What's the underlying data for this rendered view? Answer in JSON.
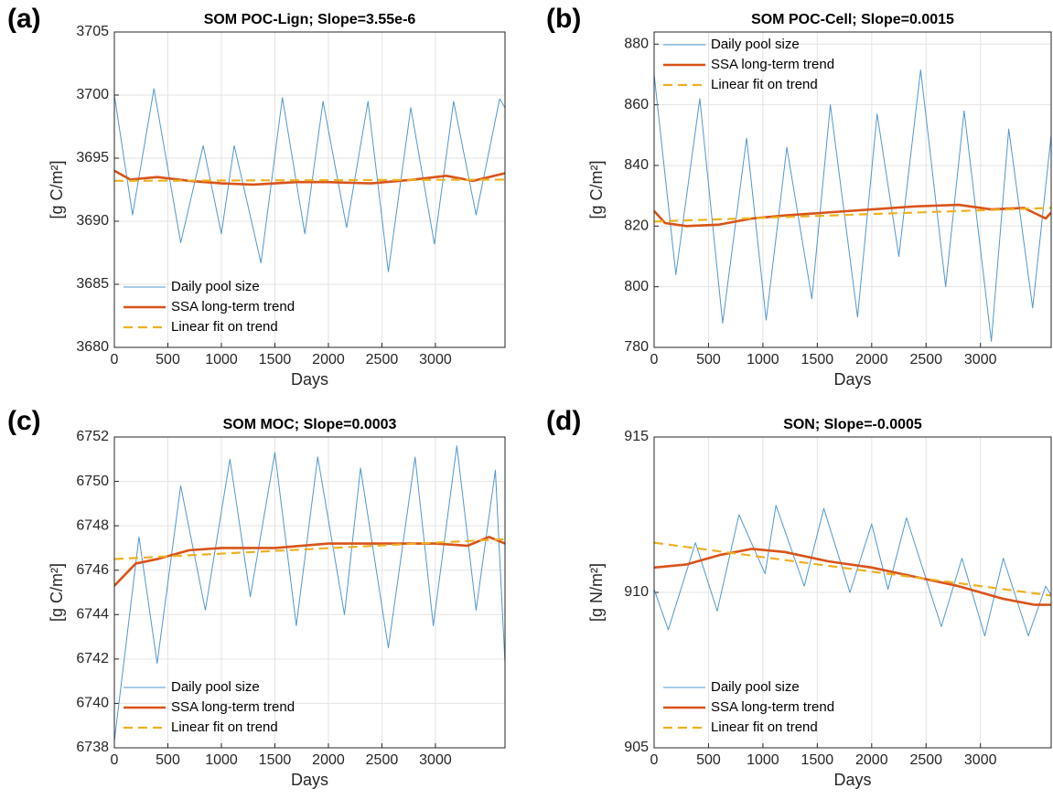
{
  "chart_data": [
    {
      "type": "line",
      "panel_label": "(a)",
      "title": "SOM POC-Lign; Slope=3.55e-6",
      "x_label": "Days",
      "y_label": "[g C/m²]",
      "xlim": [
        0,
        3650
      ],
      "xticks": [
        0,
        500,
        1000,
        1500,
        2000,
        2500,
        3000
      ],
      "ylim": [
        3680,
        3705
      ],
      "yticks": [
        3680,
        3685,
        3690,
        3695,
        3700,
        3705
      ],
      "grid": true,
      "legend": "lower left",
      "series": [
        {
          "name": "Daily pool size",
          "color": "#4f98d1",
          "style": "solid",
          "x": [
            0,
            170,
            370,
            620,
            830,
            1000,
            1120,
            1370,
            1570,
            1780,
            1950,
            2170,
            2370,
            2560,
            2770,
            2990,
            3170,
            3380,
            3600,
            3650
          ],
          "values": [
            3700,
            3690.5,
            3700.5,
            3688.3,
            3696,
            3689,
            3696,
            3686.7,
            3699.8,
            3689,
            3699.5,
            3689.5,
            3699.5,
            3686,
            3699,
            3688.2,
            3699.5,
            3690.5,
            3699.7,
            3699
          ]
        },
        {
          "name": "SSA long-term trend",
          "color": "#d95319",
          "style": "thick",
          "x": [
            0,
            150,
            400,
            700,
            1000,
            1300,
            1700,
            2000,
            2400,
            2800,
            3100,
            3350,
            3650
          ],
          "values": [
            3694,
            3693.3,
            3693.5,
            3693.2,
            3693,
            3692.9,
            3693.1,
            3693.1,
            3693,
            3693.3,
            3693.6,
            3693.2,
            3693.8
          ]
        },
        {
          "name": "Linear fit on trend",
          "color": "#edb120",
          "style": "dashed",
          "x": [
            0,
            3650
          ],
          "values": [
            3693.2,
            3693.3
          ]
        }
      ]
    },
    {
      "type": "line",
      "panel_label": "(b)",
      "title": "SOM POC-Cell; Slope=0.0015",
      "x_label": "Days",
      "y_label": "[g C/m²]",
      "xlim": [
        0,
        3650
      ],
      "xticks": [
        0,
        500,
        1000,
        1500,
        2000,
        2500,
        3000
      ],
      "ylim": [
        780,
        884
      ],
      "yticks": [
        780,
        800,
        820,
        840,
        860,
        880
      ],
      "grid": true,
      "legend": "upper left",
      "series": [
        {
          "name": "Daily pool size",
          "color": "#4f98d1",
          "style": "solid",
          "x": [
            0,
            200,
            420,
            630,
            850,
            1030,
            1220,
            1450,
            1620,
            1870,
            2050,
            2250,
            2450,
            2680,
            2850,
            3100,
            3260,
            3480,
            3650
          ],
          "values": [
            870,
            804,
            862,
            788,
            849,
            789,
            846,
            796,
            860,
            790,
            857,
            810,
            871.5,
            800,
            858,
            782,
            852,
            793,
            850
          ]
        },
        {
          "name": "SSA long-term trend",
          "color": "#d95319",
          "style": "thick",
          "x": [
            0,
            100,
            300,
            600,
            900,
            1200,
            1600,
            2000,
            2400,
            2800,
            3100,
            3400,
            3600,
            3650
          ],
          "values": [
            825,
            821,
            820,
            820.5,
            822.5,
            823.5,
            824.5,
            825.5,
            826.5,
            827,
            825.5,
            826,
            822.5,
            824.5
          ]
        },
        {
          "name": "Linear fit on trend",
          "color": "#edb120",
          "style": "dashed",
          "x": [
            0,
            3650
          ],
          "values": [
            821.5,
            826
          ]
        }
      ]
    },
    {
      "type": "line",
      "panel_label": "(c)",
      "title": "SOM MOC; Slope=0.0003",
      "x_label": "Days",
      "y_label": "[g C/m²]",
      "xlim": [
        0,
        3650
      ],
      "xticks": [
        0,
        500,
        1000,
        1500,
        2000,
        2500,
        3000
      ],
      "ylim": [
        6738,
        6752
      ],
      "yticks": [
        6738,
        6740,
        6742,
        6744,
        6746,
        6748,
        6750,
        6752
      ],
      "grid": true,
      "legend": "lower left",
      "series": [
        {
          "name": "Daily pool size",
          "color": "#4f98d1",
          "style": "solid",
          "x": [
            0,
            230,
            400,
            620,
            850,
            1080,
            1270,
            1500,
            1700,
            1900,
            2150,
            2300,
            2560,
            2810,
            2980,
            3200,
            3380,
            3560,
            3650
          ],
          "values": [
            6738.3,
            6747.5,
            6741.8,
            6749.8,
            6744.2,
            6751,
            6744.8,
            6751.3,
            6743.5,
            6751.1,
            6744,
            6750.6,
            6742.5,
            6751.1,
            6743.5,
            6751.6,
            6744.2,
            6750.5,
            6741.8
          ]
        },
        {
          "name": "SSA long-term trend",
          "color": "#d95319",
          "style": "thick",
          "x": [
            0,
            200,
            400,
            700,
            1000,
            1500,
            2000,
            2500,
            3000,
            3300,
            3500,
            3650
          ],
          "values": [
            6745.3,
            6746.3,
            6746.5,
            6746.9,
            6747,
            6747,
            6747.2,
            6747.2,
            6747.2,
            6747.1,
            6747.5,
            6747.2
          ]
        },
        {
          "name": "Linear fit on trend",
          "color": "#edb120",
          "style": "dashed",
          "x": [
            0,
            3650
          ],
          "values": [
            6746.5,
            6747.4
          ]
        }
      ]
    },
    {
      "type": "line",
      "panel_label": "(d)",
      "title": "SON; Slope=-0.0005",
      "x_label": "Days",
      "y_label": "[g N/m²]",
      "xlim": [
        0,
        3650
      ],
      "xticks": [
        0,
        500,
        1000,
        1500,
        2000,
        2500,
        3000
      ],
      "ylim": [
        905,
        915
      ],
      "yticks": [
        905,
        910,
        915
      ],
      "grid": true,
      "legend": "lower left",
      "series": [
        {
          "name": "Daily pool size",
          "color": "#4f98d1",
          "style": "solid",
          "x": [
            0,
            130,
            380,
            580,
            780,
            1020,
            1120,
            1380,
            1560,
            1800,
            2000,
            2150,
            2320,
            2640,
            2830,
            3040,
            3210,
            3440,
            3600,
            3650
          ],
          "values": [
            910.1,
            908.8,
            911.6,
            909.4,
            912.5,
            910.6,
            912.8,
            910.2,
            912.7,
            910,
            912.2,
            910.1,
            912.4,
            908.9,
            911.1,
            908.6,
            911.1,
            908.6,
            910.2,
            909.9
          ]
        },
        {
          "name": "SSA long-term trend",
          "color": "#d95319",
          "style": "thick",
          "x": [
            0,
            300,
            600,
            900,
            1200,
            1600,
            2000,
            2400,
            2800,
            3200,
            3500,
            3650
          ],
          "values": [
            910.8,
            910.9,
            911.2,
            911.4,
            911.3,
            911,
            910.8,
            910.5,
            910.2,
            909.8,
            909.6,
            909.6
          ]
        },
        {
          "name": "Linear fit on trend",
          "color": "#edb120",
          "style": "dashed",
          "x": [
            0,
            3650
          ],
          "values": [
            911.6,
            909.9
          ]
        }
      ]
    }
  ]
}
